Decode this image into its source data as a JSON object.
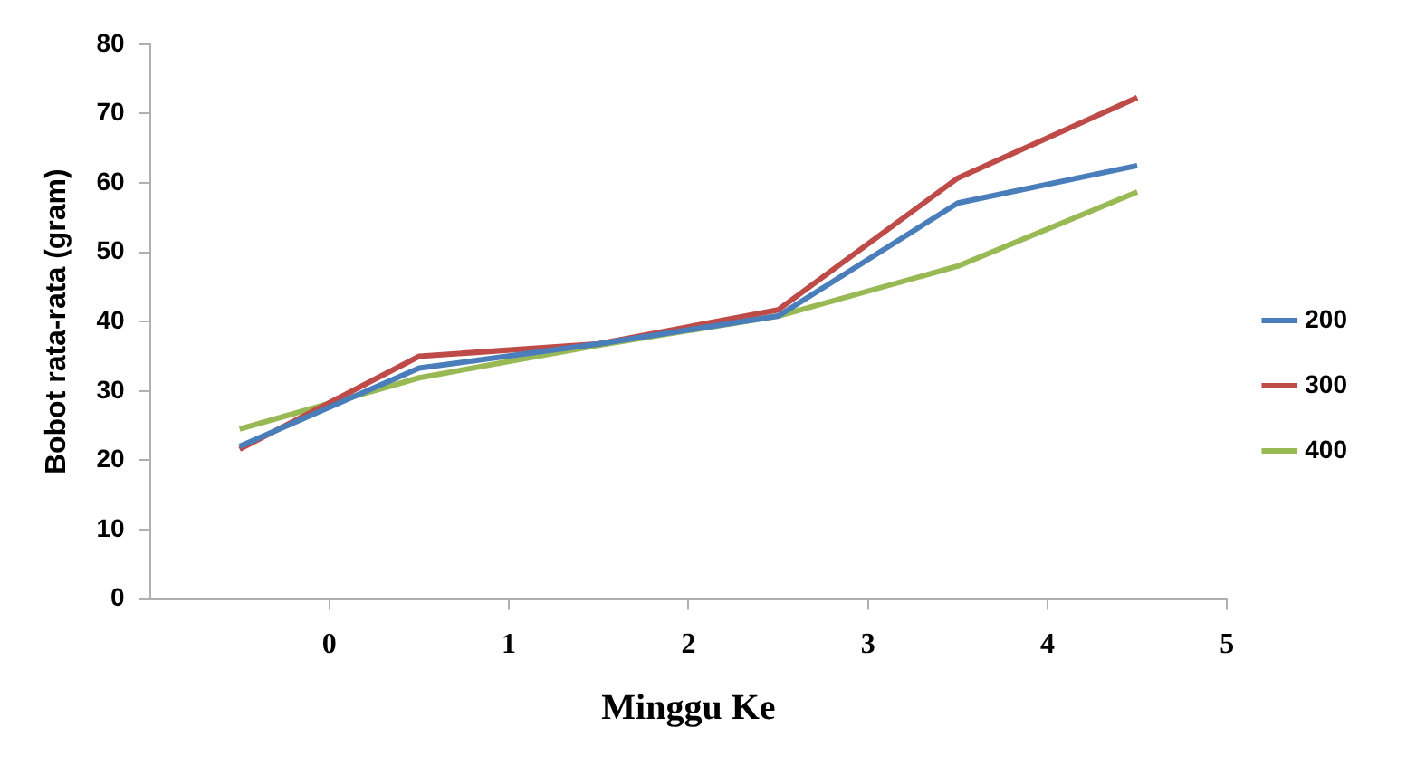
{
  "chart_data": {
    "type": "line",
    "xlabel": "Minggu Ke",
    "ylabel": "Bobot rata-rata (gram)",
    "x": [
      -0.5,
      0.5,
      1.5,
      2.5,
      3.5,
      4.5
    ],
    "series": [
      {
        "name": "200",
        "color": "#4a7ebb",
        "values": [
          22,
          33.3,
          36.8,
          40.8,
          57.1,
          62.5
        ]
      },
      {
        "name": "300",
        "color": "#be4b48",
        "values": [
          21.6,
          35,
          36.8,
          41.7,
          60.7,
          72.3
        ]
      },
      {
        "name": "400",
        "color": "#98b954",
        "values": [
          24.5,
          31.9,
          36.6,
          40.8,
          48,
          58.7
        ]
      }
    ],
    "xlim": [
      -1,
      5
    ],
    "xticks": [
      0,
      1,
      2,
      3,
      4,
      5
    ],
    "ylim": [
      0,
      80
    ],
    "yticks": [
      0,
      10,
      20,
      30,
      40,
      50,
      60,
      70,
      80
    ],
    "grid": false,
    "legend": "right",
    "marker": "none",
    "line_style": "solid"
  }
}
